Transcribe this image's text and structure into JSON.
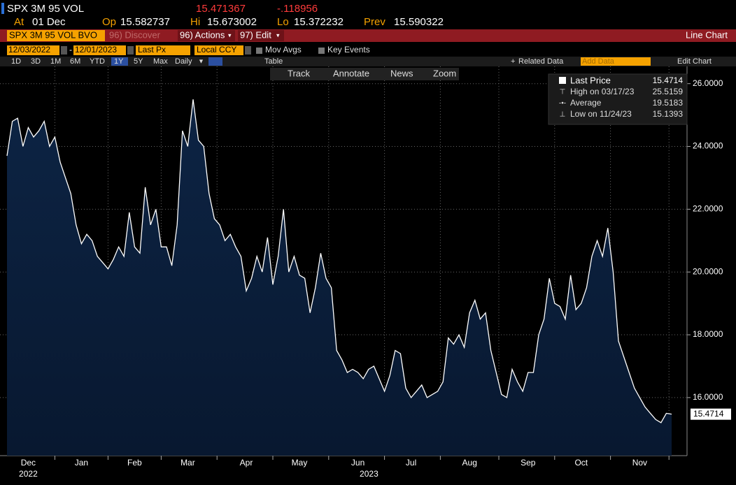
{
  "header": {
    "ticker": "SPX 3M 95 VOL",
    "last": "15.471367",
    "change": "-.118956",
    "at_label": "At",
    "at": "01 Dec",
    "op_label": "Op",
    "op": "15.582737",
    "hi_label": "Hi",
    "hi": "15.673002",
    "lo_label": "Lo",
    "lo": "15.372232",
    "prev_label": "Prev",
    "prev": "15.590322"
  },
  "menu": {
    "security": "SPX 3M 95 VOL BVO",
    "discover": "96) Discover",
    "actions": "96) Actions",
    "edit": "97) Edit",
    "view": "Line Chart"
  },
  "toolbar": {
    "start": "12/03/2022",
    "end": "12/01/2023",
    "field": "Last Px",
    "currency": "Local CCY",
    "mov_avgs": "Mov Avgs",
    "key_events": "Key Events",
    "ranges": [
      "1D",
      "3D",
      "1M",
      "6M",
      "YTD",
      "1Y",
      "5Y",
      "Max"
    ],
    "period": "Daily",
    "table": "Table",
    "related": "Related Data",
    "add_data": "Add Data",
    "edit_chart": "Edit Chart",
    "track": "Track",
    "annotate": "Annotate",
    "news": "News",
    "zoom": "Zoom"
  },
  "chart_data": {
    "type": "line",
    "categories": [
      null,
      null,
      null,
      null,
      "Dec",
      null,
      null,
      null,
      null,
      null,
      null,
      null,
      null,
      null,
      "Jan",
      null,
      null,
      null,
      null,
      null,
      null,
      null,
      null,
      null,
      "Feb",
      null,
      null,
      null,
      null,
      null,
      null,
      null,
      null,
      null,
      "Mar",
      null,
      null,
      null,
      null,
      null,
      null,
      null,
      null,
      null,
      null,
      "Apr",
      null,
      null,
      null,
      null,
      null,
      null,
      null,
      null,
      null,
      "May",
      null,
      null,
      null,
      null,
      null,
      null,
      null,
      null,
      null,
      null,
      "Jun",
      null,
      null,
      null,
      null,
      null,
      null,
      null,
      null,
      null,
      "Jul",
      null,
      null,
      null,
      null,
      null,
      null,
      null,
      null,
      null,
      null,
      "Aug",
      null,
      null,
      null,
      null,
      null,
      null,
      null,
      null,
      null,
      null,
      "Sep",
      null,
      null,
      null,
      null,
      null,
      null,
      null,
      null,
      null,
      "Oct",
      null,
      null,
      null,
      null,
      null,
      null,
      null,
      null,
      null,
      null,
      "Nov",
      null,
      null,
      null,
      null,
      null,
      null
    ],
    "year_labels": [
      "2022",
      "2023"
    ],
    "series": [
      {
        "name": "Last Price",
        "color": "#ffffff",
        "values": [
          23.7,
          24.8,
          24.9,
          24.0,
          24.6,
          24.3,
          24.5,
          24.8,
          24.0,
          24.3,
          23.5,
          23.0,
          22.5,
          21.5,
          20.9,
          21.2,
          21.0,
          20.5,
          20.3,
          20.1,
          20.4,
          20.8,
          20.5,
          21.9,
          20.8,
          20.6,
          22.7,
          21.5,
          22.0,
          20.8,
          20.8,
          20.2,
          21.5,
          24.5,
          24.0,
          25.5,
          24.2,
          24.0,
          22.5,
          21.7,
          21.5,
          21.0,
          21.2,
          20.8,
          20.5,
          19.4,
          19.8,
          20.5,
          20.0,
          21.1,
          19.6,
          20.5,
          22.0,
          20.0,
          20.5,
          19.9,
          19.8,
          18.7,
          19.5,
          20.6,
          19.8,
          19.5,
          17.5,
          17.2,
          16.8,
          16.9,
          16.8,
          16.6,
          16.9,
          17.0,
          16.6,
          16.2,
          16.7,
          17.5,
          17.4,
          16.3,
          16.0,
          16.2,
          16.4,
          16.0,
          16.1,
          16.2,
          16.5,
          17.9,
          17.7,
          18.0,
          17.6,
          18.7,
          19.1,
          18.5,
          18.7,
          17.5,
          16.8,
          16.1,
          16.0,
          16.9,
          16.5,
          16.2,
          16.8,
          16.8,
          18.0,
          18.5,
          19.8,
          19.0,
          18.9,
          18.5,
          19.9,
          18.8,
          19.0,
          19.5,
          20.5,
          21.0,
          20.5,
          21.4,
          20.0,
          17.8,
          17.3,
          16.8,
          16.3,
          16.0,
          15.7,
          15.5,
          15.3,
          15.2,
          15.5,
          15.4714
        ]
      }
    ],
    "last_value": 15.4714,
    "stats": [
      {
        "label": "High on 03/17/23",
        "value": 25.5159
      },
      {
        "label": "Average",
        "value": 19.5183
      },
      {
        "label": "Low on 11/24/23",
        "value": 15.1393
      }
    ],
    "ylim": [
      14.15,
      26.55
    ],
    "yticks": [
      {
        "value": 16,
        "label": "16.0000"
      },
      {
        "value": 18,
        "label": "18.0000"
      },
      {
        "value": 20,
        "label": "20.0000"
      },
      {
        "value": 22,
        "label": "22.0000"
      },
      {
        "value": 24,
        "label": "24.0000"
      },
      {
        "value": 26,
        "label": "26.0000"
      }
    ],
    "grid": true
  }
}
